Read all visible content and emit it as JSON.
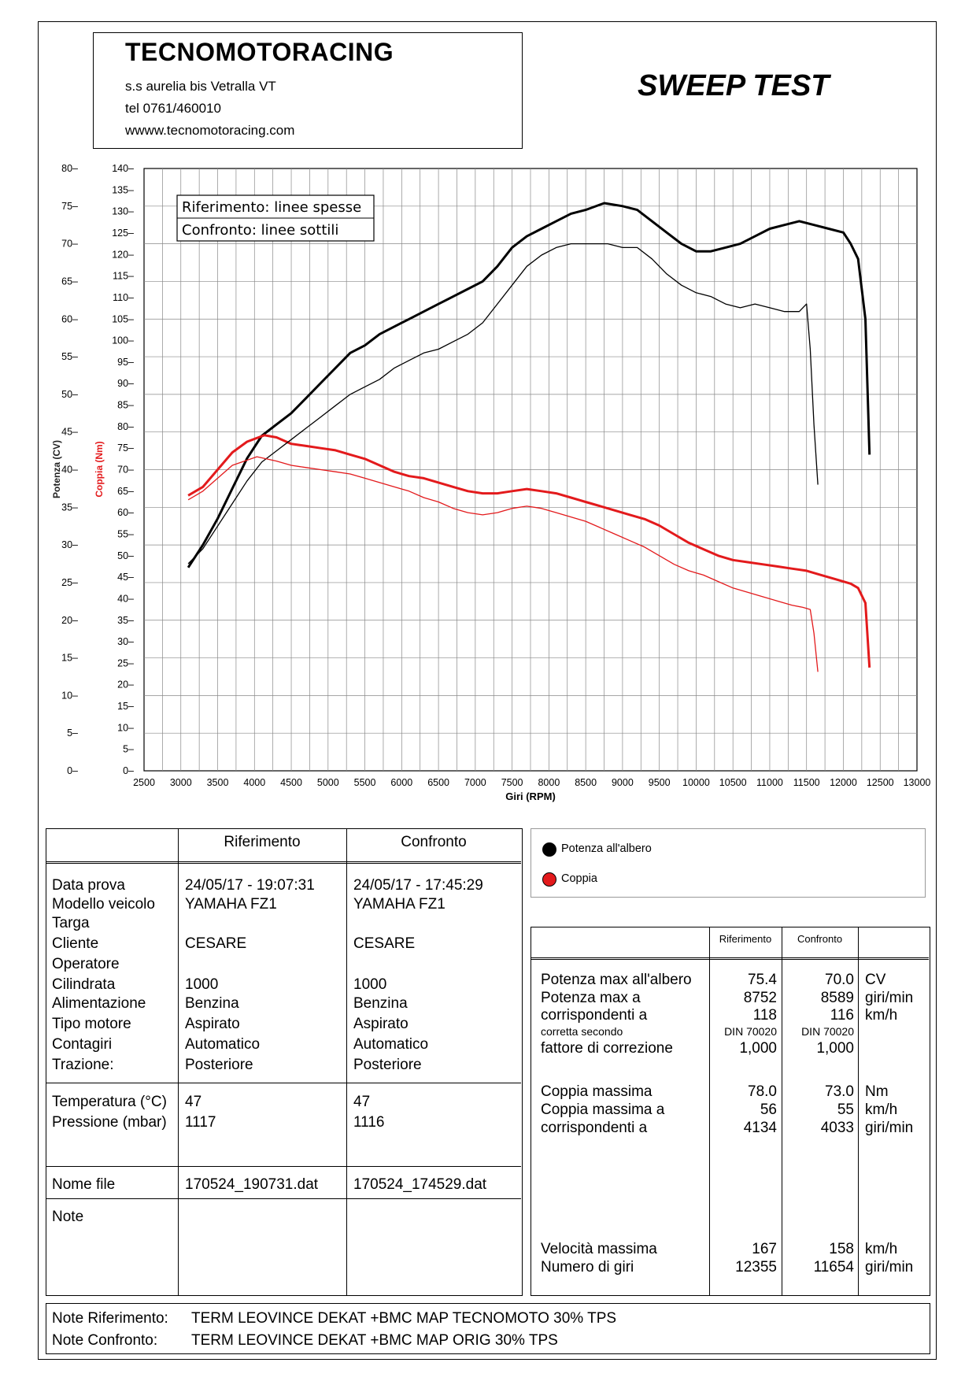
{
  "header": {
    "company": "TECNOMOTORACING",
    "address": "s.s aurelia bis  Vetralla  VT",
    "phone": "tel 0761/460010",
    "website": "wwww.tecnomotoracing.com",
    "test_title": "SWEEP TEST"
  },
  "chart_legend": {
    "reference": "Riferimento: linee spesse",
    "comparison": "Confronto: linee sottili"
  },
  "chart_data": {
    "type": "line",
    "xlabel": "Giri (RPM)",
    "ylabel_power": "Potenza (CV)",
    "ylabel_torque": "Coppia (Nm)",
    "xlim": [
      2500,
      13000
    ],
    "ylim_power": [
      0,
      80
    ],
    "ylim_torque": [
      0,
      140
    ],
    "x_ticks": [
      2500,
      3000,
      3500,
      4000,
      4500,
      5000,
      5500,
      6000,
      6500,
      7000,
      7500,
      8000,
      8500,
      9000,
      9500,
      10000,
      10500,
      11000,
      11500,
      12000,
      12500,
      13000
    ],
    "y_power_ticks": [
      0,
      5,
      10,
      15,
      20,
      25,
      30,
      35,
      40,
      45,
      50,
      55,
      60,
      65,
      70,
      75,
      80
    ],
    "y_torque_ticks": [
      0,
      5,
      10,
      15,
      20,
      25,
      30,
      35,
      40,
      45,
      50,
      55,
      60,
      65,
      70,
      75,
      80,
      85,
      90,
      95,
      100,
      105,
      110,
      115,
      120,
      125,
      130,
      135,
      140
    ],
    "grid": true,
    "series": [
      {
        "name": "Potenza all'albero",
        "run": "Riferimento",
        "axis": "power",
        "color": "#000000",
        "weight": "thick",
        "x": [
          3100,
          3300,
          3500,
          3700,
          3900,
          4100,
          4300,
          4500,
          4700,
          4900,
          5100,
          5300,
          5500,
          5700,
          5900,
          6100,
          6300,
          6500,
          6700,
          6900,
          7100,
          7300,
          7500,
          7700,
          7900,
          8100,
          8300,
          8500,
          8752,
          9000,
          9200,
          9400,
          9600,
          9800,
          10000,
          10200,
          10400,
          10600,
          10800,
          11000,
          11200,
          11400,
          11600,
          11800,
          12000,
          12100,
          12200,
          12300,
          12355
        ],
        "y": [
          27,
          30,
          33.5,
          37.5,
          41.5,
          44.5,
          46,
          47.5,
          49.5,
          51.5,
          53.5,
          55.5,
          56.5,
          58,
          59,
          60,
          61,
          62,
          63,
          64,
          65,
          67,
          69.5,
          71,
          72,
          73,
          74,
          74.5,
          75.4,
          75,
          74.5,
          73,
          71.5,
          70,
          69,
          69,
          69.5,
          70,
          71,
          72,
          72.5,
          73,
          72.5,
          72,
          71.5,
          70,
          68,
          60,
          42
        ]
      },
      {
        "name": "Coppia",
        "run": "Riferimento",
        "axis": "torque",
        "color": "#e31a1c",
        "weight": "thick",
        "x": [
          3100,
          3300,
          3500,
          3700,
          3900,
          4134,
          4300,
          4500,
          4700,
          4900,
          5100,
          5300,
          5500,
          5700,
          5900,
          6100,
          6300,
          6500,
          6700,
          6900,
          7100,
          7300,
          7500,
          7700,
          7900,
          8100,
          8300,
          8500,
          8700,
          8900,
          9100,
          9300,
          9500,
          9700,
          9900,
          10100,
          10300,
          10500,
          10700,
          10900,
          11100,
          11300,
          11500,
          11700,
          11900,
          12100,
          12200,
          12300,
          12355
        ],
        "y": [
          64,
          66,
          70,
          74,
          76.5,
          78,
          77.5,
          76,
          75.5,
          75,
          74.5,
          73.5,
          72.5,
          71,
          69.5,
          68.5,
          68,
          67,
          66,
          65,
          64.5,
          64.5,
          65,
          65.5,
          65,
          64.5,
          63.5,
          62.5,
          61.5,
          60.5,
          59.5,
          58.5,
          57,
          55,
          53,
          51.5,
          50,
          49,
          48.5,
          48,
          47.5,
          47,
          46.5,
          45.5,
          44.5,
          43.5,
          42.5,
          39,
          24
        ]
      },
      {
        "name": "Potenza all'albero",
        "run": "Confronto",
        "axis": "power",
        "color": "#000000",
        "weight": "thin",
        "x": [
          3100,
          3300,
          3500,
          3700,
          3900,
          4100,
          4300,
          4500,
          4700,
          4900,
          5100,
          5300,
          5500,
          5700,
          5900,
          6100,
          6300,
          6500,
          6700,
          6900,
          7100,
          7300,
          7500,
          7700,
          7900,
          8100,
          8300,
          8589,
          8800,
          9000,
          9200,
          9400,
          9600,
          9800,
          10000,
          10200,
          10400,
          10600,
          10800,
          11000,
          11200,
          11400,
          11500,
          11550,
          11600,
          11654
        ],
        "y": [
          27.5,
          29.5,
          32.5,
          35.5,
          38.5,
          41,
          42.5,
          44,
          45.5,
          47,
          48.5,
          50,
          51,
          52,
          53.5,
          54.5,
          55.5,
          56,
          57,
          58,
          59.5,
          62,
          64.5,
          67,
          68.5,
          69.5,
          70,
          70,
          70,
          69.5,
          69.5,
          68,
          66,
          64.5,
          63.5,
          63,
          62,
          61.5,
          62,
          61.5,
          61,
          61,
          62,
          56,
          46,
          38
        ]
      },
      {
        "name": "Coppia",
        "run": "Confronto",
        "axis": "torque",
        "color": "#e31a1c",
        "weight": "thin",
        "x": [
          3100,
          3300,
          3500,
          3700,
          4033,
          4300,
          4500,
          4700,
          4900,
          5100,
          5300,
          5500,
          5700,
          5900,
          6100,
          6300,
          6500,
          6700,
          6900,
          7100,
          7300,
          7500,
          7700,
          7900,
          8100,
          8300,
          8500,
          8700,
          8900,
          9100,
          9300,
          9500,
          9700,
          9900,
          10100,
          10300,
          10500,
          10700,
          10900,
          11100,
          11300,
          11450,
          11550,
          11600,
          11654
        ],
        "y": [
          63,
          65,
          68,
          71,
          73,
          72,
          71,
          70.5,
          70,
          69.5,
          69,
          68,
          67,
          66,
          65,
          63.5,
          62.5,
          61,
          60,
          59.5,
          60,
          61,
          61.5,
          61,
          60,
          59,
          58,
          56.5,
          55,
          53.5,
          52,
          50,
          48,
          46.5,
          45.5,
          44,
          42.5,
          41.5,
          40.5,
          39.5,
          38.5,
          38,
          37.5,
          32,
          23
        ]
      }
    ]
  },
  "legend": {
    "power_label": "Potenza all'albero",
    "torque_label": "Coppia",
    "power_color": "#000000",
    "torque_color": "#e31a1c"
  },
  "info_table": {
    "col_ref": "Riferimento",
    "col_cmp": "Confronto",
    "labels": [
      "Data prova",
      "Modello veicolo",
      "Targa",
      "Cliente",
      "Operatore",
      "Cilindrata",
      "Alimentazione",
      "Tipo motore",
      "Contagiri",
      "Trazione:"
    ],
    "ref": [
      "24/05/17 - 19:07:31",
      "YAMAHA FZ1",
      "",
      "CESARE",
      "",
      "1000",
      "Benzina",
      "Aspirato",
      "Automatico",
      "Posteriore"
    ],
    "cmp": [
      "24/05/17 - 17:45:29",
      "YAMAHA FZ1",
      "",
      "CESARE",
      "",
      "1000",
      "Benzina",
      "Aspirato",
      "Automatico",
      "Posteriore"
    ],
    "env_labels": [
      "Temperatura (°C)",
      "Pressione (mbar)"
    ],
    "env_ref": [
      "47",
      "1117"
    ],
    "env_cmp": [
      "47",
      "1116"
    ],
    "file_label": "Nome file",
    "file_ref": "170524_190731.dat",
    "file_cmp": "170524_174529.dat",
    "note_label": "Note"
  },
  "results_table": {
    "col_ref": "Riferimento",
    "col_cmp": "Confronto",
    "max_power_label": "Potenza max all'albero",
    "max_power_ref": "75.4",
    "max_power_cmp": "70.0",
    "max_power_unit": "CV",
    "power_at_label": "Potenza max a",
    "power_at_ref": "8752",
    "power_at_cmp": "8589",
    "power_at_unit": "giri/min",
    "corr_label": "corrispondenti a",
    "corr_ref": "118",
    "corr_cmp": "116",
    "corr_unit": "km/h",
    "corrected_label": "corretta secondo",
    "corrected_ref": "DIN 70020",
    "corrected_cmp": "DIN 70020",
    "factor_label": "fattore di correzione",
    "factor_ref": "1,000",
    "factor_cmp": "1,000",
    "max_torque_label": "Coppia massima",
    "max_torque_ref": "78.0",
    "max_torque_cmp": "73.0",
    "max_torque_unit": "Nm",
    "torque_at_label": "Coppia massima a",
    "torque_at_ref": "56",
    "torque_at_cmp": "55",
    "torque_at_unit": "km/h",
    "torque_corr_label": "corrispondenti a",
    "torque_corr_ref": "4134",
    "torque_corr_cmp": "4033",
    "torque_corr_unit": "giri/min",
    "max_speed_label": "Velocità massima",
    "max_speed_ref": "167",
    "max_speed_cmp": "158",
    "max_speed_unit": "km/h",
    "rpm_label": "Numero di giri",
    "rpm_ref": "12355",
    "rpm_cmp": "11654",
    "rpm_unit": "giri/min"
  },
  "notes": {
    "ref_label": "Note Riferimento:",
    "ref_text": "TERM LEOVINCE DEKAT +BMC MAP TECNOMOTO 30% TPS",
    "cmp_label": "Note Confronto:",
    "cmp_text": "TERM LEOVINCE DEKAT +BMC MAP ORIG 30% TPS"
  }
}
